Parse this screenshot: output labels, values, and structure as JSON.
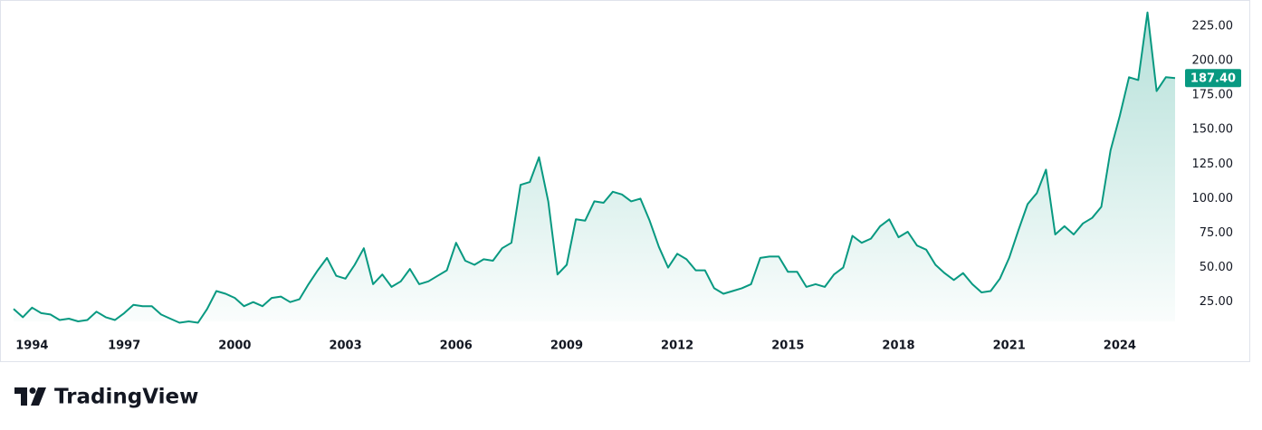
{
  "chart_data": {
    "type": "area",
    "categories": [
      null,
      null,
      "1994",
      null,
      null,
      null,
      null,
      null,
      null,
      null,
      null,
      null,
      "1997",
      null,
      null,
      null,
      null,
      null,
      null,
      null,
      null,
      null,
      null,
      null,
      "2000",
      null,
      null,
      null,
      null,
      null,
      null,
      null,
      null,
      null,
      null,
      null,
      "2003",
      null,
      null,
      null,
      null,
      null,
      null,
      null,
      null,
      null,
      null,
      null,
      "2006",
      null,
      null,
      null,
      null,
      null,
      null,
      null,
      null,
      null,
      null,
      null,
      "2009",
      null,
      null,
      null,
      null,
      null,
      null,
      null,
      null,
      null,
      null,
      null,
      "2012",
      null,
      null,
      null,
      null,
      null,
      null,
      null,
      null,
      null,
      null,
      null,
      "2015",
      null,
      null,
      null,
      null,
      null,
      null,
      null,
      null,
      null,
      null,
      null,
      "2018",
      null,
      null,
      null,
      null,
      null,
      null,
      null,
      null,
      null,
      null,
      null,
      "2021",
      null,
      null,
      null,
      null,
      null,
      null,
      null,
      null,
      null,
      null,
      null,
      "2024",
      null,
      null,
      null,
      null,
      null,
      null
    ],
    "values": [
      20,
      14,
      21,
      17,
      16,
      12,
      13,
      11,
      12,
      18,
      14,
      12,
      17,
      23,
      22,
      22,
      16,
      13,
      10,
      11,
      10,
      20,
      33,
      31,
      28,
      22,
      25,
      22,
      28,
      29,
      25,
      27,
      38,
      48,
      57,
      44,
      42,
      52,
      64,
      38,
      45,
      36,
      40,
      49,
      38,
      40,
      44,
      48,
      68,
      55,
      52,
      56,
      55,
      64,
      68,
      110,
      112,
      130,
      98,
      45,
      52,
      85,
      84,
      98,
      97,
      105,
      103,
      98,
      100,
      84,
      65,
      50,
      60,
      56,
      48,
      48,
      35,
      31,
      33,
      35,
      38,
      57,
      58,
      58,
      47,
      47,
      36,
      38,
      36,
      45,
      50,
      73,
      68,
      71,
      80,
      85,
      72,
      76,
      66,
      63,
      52,
      46,
      41,
      46,
      38,
      32,
      33,
      42,
      57,
      77,
      96,
      104,
      121,
      74,
      80,
      74,
      82,
      86,
      94,
      135,
      160,
      188,
      186,
      235,
      178,
      188,
      187.4
    ],
    "color": "#089981",
    "ylim": [
      11,
      244
    ],
    "yticks": [
      {
        "value": 25,
        "label": "25.00"
      },
      {
        "value": 50,
        "label": "50.00"
      },
      {
        "value": 75,
        "label": "75.00"
      },
      {
        "value": 100,
        "label": "100.00"
      },
      {
        "value": 125,
        "label": "125.00"
      },
      {
        "value": 150,
        "label": "150.00"
      },
      {
        "value": 175,
        "label": "175.00"
      },
      {
        "value": 200,
        "label": "200.00"
      },
      {
        "value": 225,
        "label": "225.00"
      }
    ],
    "price_tag": {
      "value": 187.4,
      "label": "187.40"
    },
    "brand": "TradingView"
  }
}
